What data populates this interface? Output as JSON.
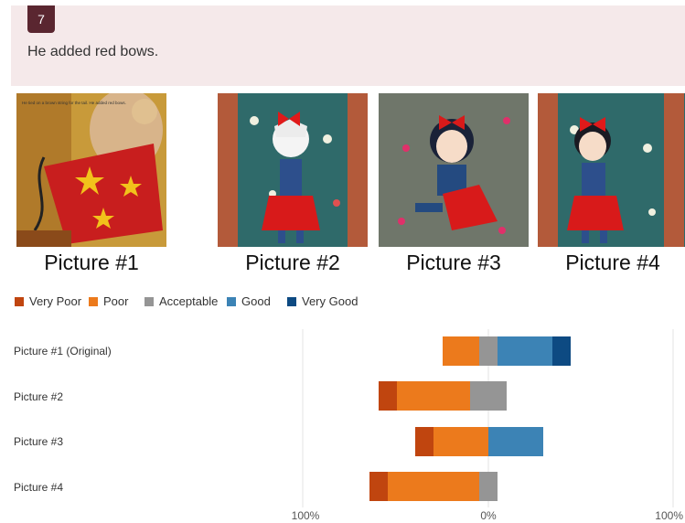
{
  "question": {
    "number": "7",
    "text": "He added red bows."
  },
  "pictures": [
    {
      "caption": "Picture #1",
      "embedded_text": "He tied on a brown string for the tail. He added red bows."
    },
    {
      "caption": "Picture #2"
    },
    {
      "caption": "Picture #3"
    },
    {
      "caption": "Picture #4"
    }
  ],
  "chart_data": {
    "type": "bar",
    "subtype": "diverging-stacked-horizontal",
    "categories": [
      "Picture #1 (Original)",
      "Picture #2",
      "Picture #3",
      "Picture #4"
    ],
    "series": [
      {
        "name": "Very Poor",
        "color": "#c0450f",
        "values": [
          0,
          10,
          10,
          10
        ]
      },
      {
        "name": "Poor",
        "color": "#ec7a1c",
        "values": [
          20,
          40,
          30,
          50
        ]
      },
      {
        "name": "Acceptable",
        "color": "#959595",
        "values": [
          10,
          20,
          0,
          10
        ]
      },
      {
        "name": "Good",
        "color": "#3c83b5",
        "values": [
          30,
          0,
          30,
          0
        ]
      },
      {
        "name": "Very Good",
        "color": "#0d4a82",
        "values": [
          10,
          0,
          0,
          0
        ]
      }
    ],
    "unit": "%",
    "xlim": [
      -100,
      100
    ],
    "xticks": [
      {
        "value": -100,
        "label": "100%"
      },
      {
        "value": 0,
        "label": "0%"
      },
      {
        "value": 100,
        "label": "100%"
      }
    ],
    "grid": false,
    "legend_position": "top-left"
  }
}
